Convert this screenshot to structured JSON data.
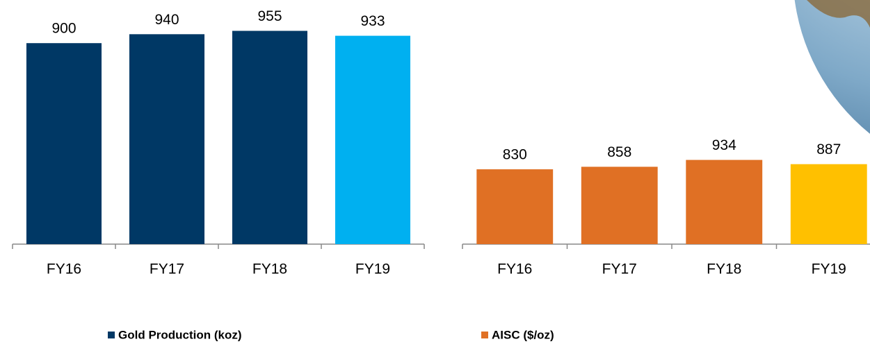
{
  "chart_data": [
    {
      "type": "bar",
      "categories": [
        "FY16",
        "FY17",
        "FY18",
        "FY19"
      ],
      "series": [
        {
          "name": "Gold Production (koz)",
          "color": "#003865",
          "values": [
            900,
            940,
            955,
            933
          ]
        }
      ],
      "colors": [
        "#003865",
        "#003865",
        "#003865",
        "#00b0f0"
      ],
      "ylim": [
        0,
        1000
      ]
    },
    {
      "type": "bar",
      "categories": [
        "FY16",
        "FY17",
        "FY18",
        "FY19"
      ],
      "series": [
        {
          "name": "AISC ($/oz)",
          "color": "#e07024",
          "values": [
            830,
            858,
            934,
            887
          ]
        }
      ],
      "colors": [
        "#e07024",
        "#e07024",
        "#e07024",
        "#ffc000"
      ],
      "ylim": [
        0,
        2500
      ]
    }
  ]
}
